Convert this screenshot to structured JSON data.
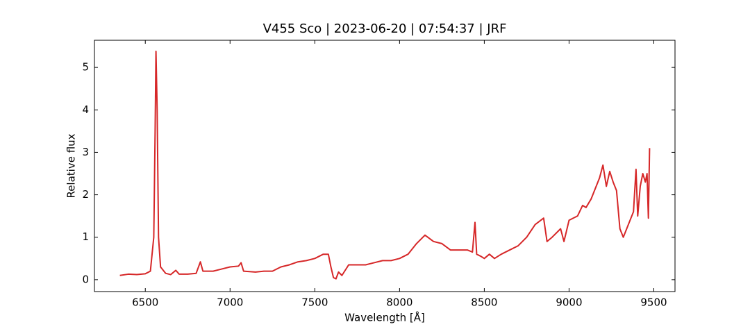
{
  "chart_data": {
    "type": "line",
    "title": "V455 Sco | 2023-06-20 | 07:54:37 | JRF",
    "x_label": "Wavelength [Å]",
    "y_label": "Relative flux",
    "color": "#d62728",
    "x": [
      6350,
      6400,
      6450,
      6500,
      6530,
      6550,
      6558,
      6563,
      6570,
      6578,
      6590,
      6620,
      6650,
      6680,
      6700,
      6750,
      6800,
      6825,
      6840,
      6900,
      6950,
      7000,
      7050,
      7065,
      7080,
      7150,
      7200,
      7250,
      7300,
      7350,
      7400,
      7450,
      7500,
      7550,
      7580,
      7595,
      7610,
      7625,
      7640,
      7660,
      7700,
      7750,
      7800,
      7850,
      7900,
      7950,
      8000,
      8050,
      8100,
      8150,
      8200,
      8250,
      8300,
      8350,
      8400,
      8430,
      8445,
      8455,
      8480,
      8500,
      8530,
      8560,
      8600,
      8650,
      8700,
      8750,
      8800,
      8850,
      8870,
      8900,
      8950,
      8970,
      9000,
      9050,
      9080,
      9100,
      9130,
      9160,
      9180,
      9200,
      9220,
      9240,
      9260,
      9280,
      9300,
      9320,
      9340,
      9360,
      9380,
      9395,
      9405,
      9420,
      9435,
      9450,
      9460,
      9468,
      9475
    ],
    "values": [
      0.1,
      0.13,
      0.12,
      0.14,
      0.2,
      1.0,
      3.5,
      5.38,
      4.0,
      1.0,
      0.3,
      0.15,
      0.12,
      0.22,
      0.13,
      0.13,
      0.15,
      0.42,
      0.2,
      0.2,
      0.25,
      0.3,
      0.32,
      0.4,
      0.2,
      0.18,
      0.2,
      0.2,
      0.3,
      0.35,
      0.42,
      0.45,
      0.5,
      0.6,
      0.6,
      0.3,
      0.05,
      0.02,
      0.18,
      0.1,
      0.35,
      0.35,
      0.35,
      0.4,
      0.45,
      0.45,
      0.5,
      0.6,
      0.85,
      1.05,
      0.9,
      0.85,
      0.7,
      0.7,
      0.7,
      0.65,
      1.35,
      0.6,
      0.55,
      0.5,
      0.6,
      0.5,
      0.6,
      0.7,
      0.8,
      1.0,
      1.3,
      1.45,
      0.9,
      1.0,
      1.2,
      0.9,
      1.4,
      1.5,
      1.75,
      1.7,
      1.9,
      2.2,
      2.4,
      2.7,
      2.2,
      2.55,
      2.3,
      2.1,
      1.2,
      1.0,
      1.2,
      1.4,
      1.6,
      2.6,
      1.5,
      2.2,
      2.5,
      2.3,
      2.5,
      1.45,
      3.1
    ],
    "xlim": [
      6200,
      9625
    ],
    "ylim": [
      -0.28,
      5.64
    ],
    "xticks": [
      6500,
      7000,
      7500,
      8000,
      8500,
      9000,
      9500
    ],
    "yticks": [
      0,
      1,
      2,
      3,
      4,
      5
    ]
  }
}
